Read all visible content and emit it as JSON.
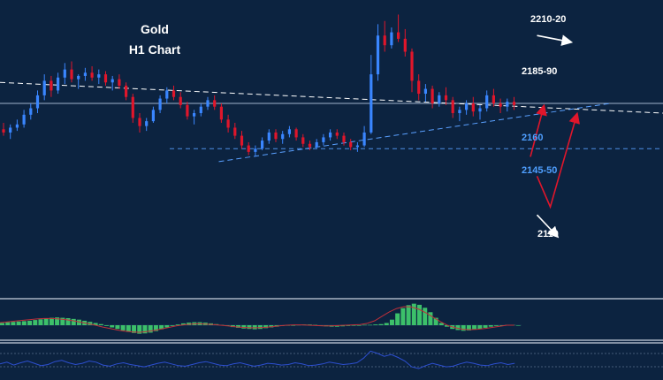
{
  "chart_data": {
    "type": "candlestick",
    "title": "Gold",
    "subtitle": "H1 Chart",
    "ohlc": [
      [
        2180,
        2184,
        2176,
        2178
      ],
      [
        2178,
        2183,
        2174,
        2181
      ],
      [
        2181,
        2186,
        2179,
        2183
      ],
      [
        2183,
        2192,
        2181,
        2189
      ],
      [
        2189,
        2196,
        2186,
        2193
      ],
      [
        2193,
        2204,
        2190,
        2201
      ],
      [
        2201,
        2214,
        2198,
        2210
      ],
      [
        2210,
        2213,
        2200,
        2204
      ],
      [
        2204,
        2215,
        2202,
        2212
      ],
      [
        2212,
        2221,
        2208,
        2217
      ],
      [
        2217,
        2222,
        2209,
        2211
      ],
      [
        2211,
        2214,
        2205,
        2213
      ],
      [
        2213,
        2218,
        2210,
        2215
      ],
      [
        2215,
        2219,
        2210,
        2212
      ],
      [
        2212,
        2217,
        2208,
        2214
      ],
      [
        2214,
        2216,
        2207,
        2209
      ],
      [
        2209,
        2213,
        2204,
        2211
      ],
      [
        2211,
        2214,
        2205,
        2207
      ],
      [
        2207,
        2209,
        2198,
        2200
      ],
      [
        2200,
        2202,
        2184,
        2187
      ],
      [
        2187,
        2190,
        2178,
        2182
      ],
      [
        2182,
        2187,
        2179,
        2185
      ],
      [
        2185,
        2194,
        2184,
        2192
      ],
      [
        2192,
        2201,
        2190,
        2199
      ],
      [
        2199,
        2206,
        2196,
        2204
      ],
      [
        2204,
        2207,
        2198,
        2200
      ],
      [
        2200,
        2203,
        2193,
        2195
      ],
      [
        2195,
        2197,
        2186,
        2188
      ],
      [
        2188,
        2192,
        2183,
        2190
      ],
      [
        2190,
        2196,
        2188,
        2194
      ],
      [
        2194,
        2200,
        2192,
        2198
      ],
      [
        2198,
        2201,
        2192,
        2194
      ],
      [
        2194,
        2196,
        2184,
        2186
      ],
      [
        2186,
        2189,
        2178,
        2181
      ],
      [
        2181,
        2184,
        2174,
        2176
      ],
      [
        2176,
        2179,
        2168,
        2170
      ],
      [
        2170,
        2172,
        2164,
        2166
      ],
      [
        2166,
        2170,
        2163,
        2168
      ],
      [
        2168,
        2175,
        2167,
        2173
      ],
      [
        2173,
        2180,
        2171,
        2178
      ],
      [
        2178,
        2180,
        2172,
        2174
      ],
      [
        2174,
        2179,
        2171,
        2177
      ],
      [
        2177,
        2182,
        2175,
        2180
      ],
      [
        2180,
        2181,
        2173,
        2175
      ],
      [
        2175,
        2177,
        2169,
        2171
      ],
      [
        2171,
        2173,
        2167,
        2169
      ],
      [
        2169,
        2174,
        2168,
        2172
      ],
      [
        2172,
        2177,
        2170,
        2175
      ],
      [
        2175,
        2180,
        2173,
        2178
      ],
      [
        2178,
        2180,
        2174,
        2176
      ],
      [
        2176,
        2178,
        2170,
        2172
      ],
      [
        2172,
        2174,
        2167,
        2169
      ],
      [
        2169,
        2172,
        2166,
        2170
      ],
      [
        2170,
        2182,
        2169,
        2178
      ],
      [
        2178,
        2226,
        2177,
        2214
      ],
      [
        2214,
        2245,
        2210,
        2238
      ],
      [
        2238,
        2247,
        2228,
        2232
      ],
      [
        2232,
        2243,
        2230,
        2240
      ],
      [
        2240,
        2251,
        2234,
        2236
      ],
      [
        2236,
        2242,
        2225,
        2228
      ],
      [
        2228,
        2230,
        2203,
        2210
      ],
      [
        2210,
        2214,
        2198,
        2202
      ],
      [
        2202,
        2208,
        2197,
        2205
      ],
      [
        2205,
        2207,
        2193,
        2196
      ],
      [
        2196,
        2203,
        2194,
        2201
      ],
      [
        2201,
        2206,
        2195,
        2198
      ],
      [
        2198,
        2200,
        2187,
        2190
      ],
      [
        2190,
        2194,
        2185,
        2192
      ],
      [
        2192,
        2198,
        2189,
        2196
      ],
      [
        2196,
        2200,
        2188,
        2191
      ],
      [
        2191,
        2195,
        2186,
        2193
      ],
      [
        2193,
        2204,
        2191,
        2201
      ],
      [
        2201,
        2205,
        2194,
        2196
      ],
      [
        2196,
        2199,
        2190,
        2194
      ],
      [
        2194,
        2199,
        2191,
        2197
      ],
      [
        2197,
        2200,
        2192,
        2195
      ]
    ],
    "y_range": [
      2085,
      2260
    ],
    "trendlines": [
      {
        "style": "dashed",
        "color": "#ffffff",
        "from": [
          0,
          2209
        ],
        "to": [
          100,
          2190
        ]
      },
      {
        "style": "dashed",
        "color": "#5aa0ff",
        "from": [
          33,
          2160
        ],
        "to": [
          92,
          2196
        ]
      }
    ],
    "horizontal_lines": [
      {
        "value": 2196,
        "style": "solid",
        "color": "#9fb3cc"
      },
      {
        "value": 2168,
        "style": "dashed",
        "color": "#4f8fe6"
      }
    ],
    "annotations": [
      {
        "text": "2210-20",
        "color": "#ffffff"
      },
      {
        "text": "2185-90",
        "color": "#ffffff"
      },
      {
        "text": "2160",
        "color": "#4f9fff"
      },
      {
        "text": "2145-50",
        "color": "#4f9fff"
      },
      {
        "text": "2110",
        "color": "#ffffff"
      }
    ],
    "projection_paths": [
      {
        "color": "#e0162b",
        "points": [
          [
            80,
            2163
          ],
          [
            82,
            2194
          ]
        ]
      },
      {
        "color": "#e0162b",
        "points": [
          [
            81,
            2151
          ],
          [
            83,
            2132
          ],
          [
            87,
            2189
          ]
        ]
      },
      {
        "color": "#ffffff",
        "points": [
          [
            81,
            2238
          ],
          [
            86,
            2234
          ]
        ]
      },
      {
        "color": "#ffffff",
        "points": [
          [
            81,
            2127
          ],
          [
            84,
            2114
          ]
        ]
      }
    ],
    "oscillator": {
      "type": "histogram",
      "color": "#3cc06a",
      "values": [
        0.6,
        0.8,
        0.9,
        1.0,
        1.1,
        1.2,
        1.4,
        1.6,
        1.8,
        2.0,
        2.1,
        2.0,
        1.9,
        1.7,
        1.5,
        1.2,
        0.9,
        0.6,
        0.3,
        -0.2,
        -0.6,
        -1.0,
        -1.4,
        -1.8,
        -2.1,
        -2.3,
        -2.2,
        -2.0,
        -1.6,
        -1.1,
        -0.6,
        -0.2,
        0.2,
        0.5,
        0.7,
        0.8,
        0.8,
        0.7,
        0.5,
        0.3,
        0.1,
        -0.2,
        -0.5,
        -0.7,
        -0.9,
        -1.0,
        -1.1,
        -1.0,
        -0.8,
        -0.6,
        -0.4,
        -0.2,
        -0.1,
        0.0,
        0.1,
        0.2,
        0.2,
        0.1,
        -0.1,
        -0.3,
        -0.4,
        -0.4,
        -0.3,
        -0.2,
        -0.1,
        0.0,
        0.1,
        0.1,
        0.2,
        0.3,
        0.6,
        1.5,
        3.2,
        4.6,
        5.4,
        5.8,
        5.5,
        4.7,
        3.5,
        2.0,
        0.6,
        -0.4,
        -1.0,
        -1.3,
        -1.5,
        -1.4,
        -1.2,
        -1.0,
        -0.7,
        -0.4,
        -0.2,
        0.0,
        0.1,
        0.1,
        0.0
      ],
      "signal": [
        0.7,
        0.9,
        1.1,
        1.3,
        1.5,
        1.7,
        1.8,
        1.8,
        1.7,
        1.5,
        1.2,
        0.8,
        0.4,
        0.0,
        -0.5,
        -0.9,
        -1.3,
        -1.6,
        -1.8,
        -1.9,
        -1.7,
        -1.4,
        -1.0,
        -0.6,
        -0.2,
        0.1,
        0.3,
        0.4,
        0.3,
        0.2,
        0.0,
        -0.2,
        -0.4,
        -0.6,
        -0.7,
        -0.7,
        -0.6,
        -0.4,
        -0.2,
        0.0,
        0.1,
        0.1,
        0.0,
        -0.1,
        -0.2,
        -0.2,
        -0.1,
        0.0,
        0.1,
        0.2,
        0.5,
        1.2,
        2.4,
        3.6,
        4.5,
        5.0,
        4.9,
        4.3,
        3.3,
        2.1,
        0.9,
        -0.1,
        -0.7,
        -1.1,
        -1.2,
        -1.1,
        -0.9,
        -0.6,
        -0.3,
        0.0,
        0.0
      ]
    },
    "rsi": {
      "color": "#2d4fd0",
      "values": [
        50,
        53,
        48,
        52,
        55,
        51,
        47,
        49,
        54,
        56,
        52,
        49,
        51,
        55,
        53,
        48,
        46,
        50,
        52,
        49,
        47,
        45,
        48,
        51,
        53,
        50,
        47,
        46,
        49,
        52,
        54,
        51,
        48,
        47,
        50,
        52,
        49,
        46,
        48,
        51,
        50,
        48,
        49,
        52,
        50,
        47,
        48,
        50,
        53,
        51,
        49,
        50,
        52,
        60,
        72,
        68,
        63,
        66,
        61,
        55,
        45,
        42,
        47,
        51,
        48,
        45,
        46,
        50,
        53,
        51,
        48,
        47,
        50,
        52,
        49,
        51
      ]
    }
  }
}
